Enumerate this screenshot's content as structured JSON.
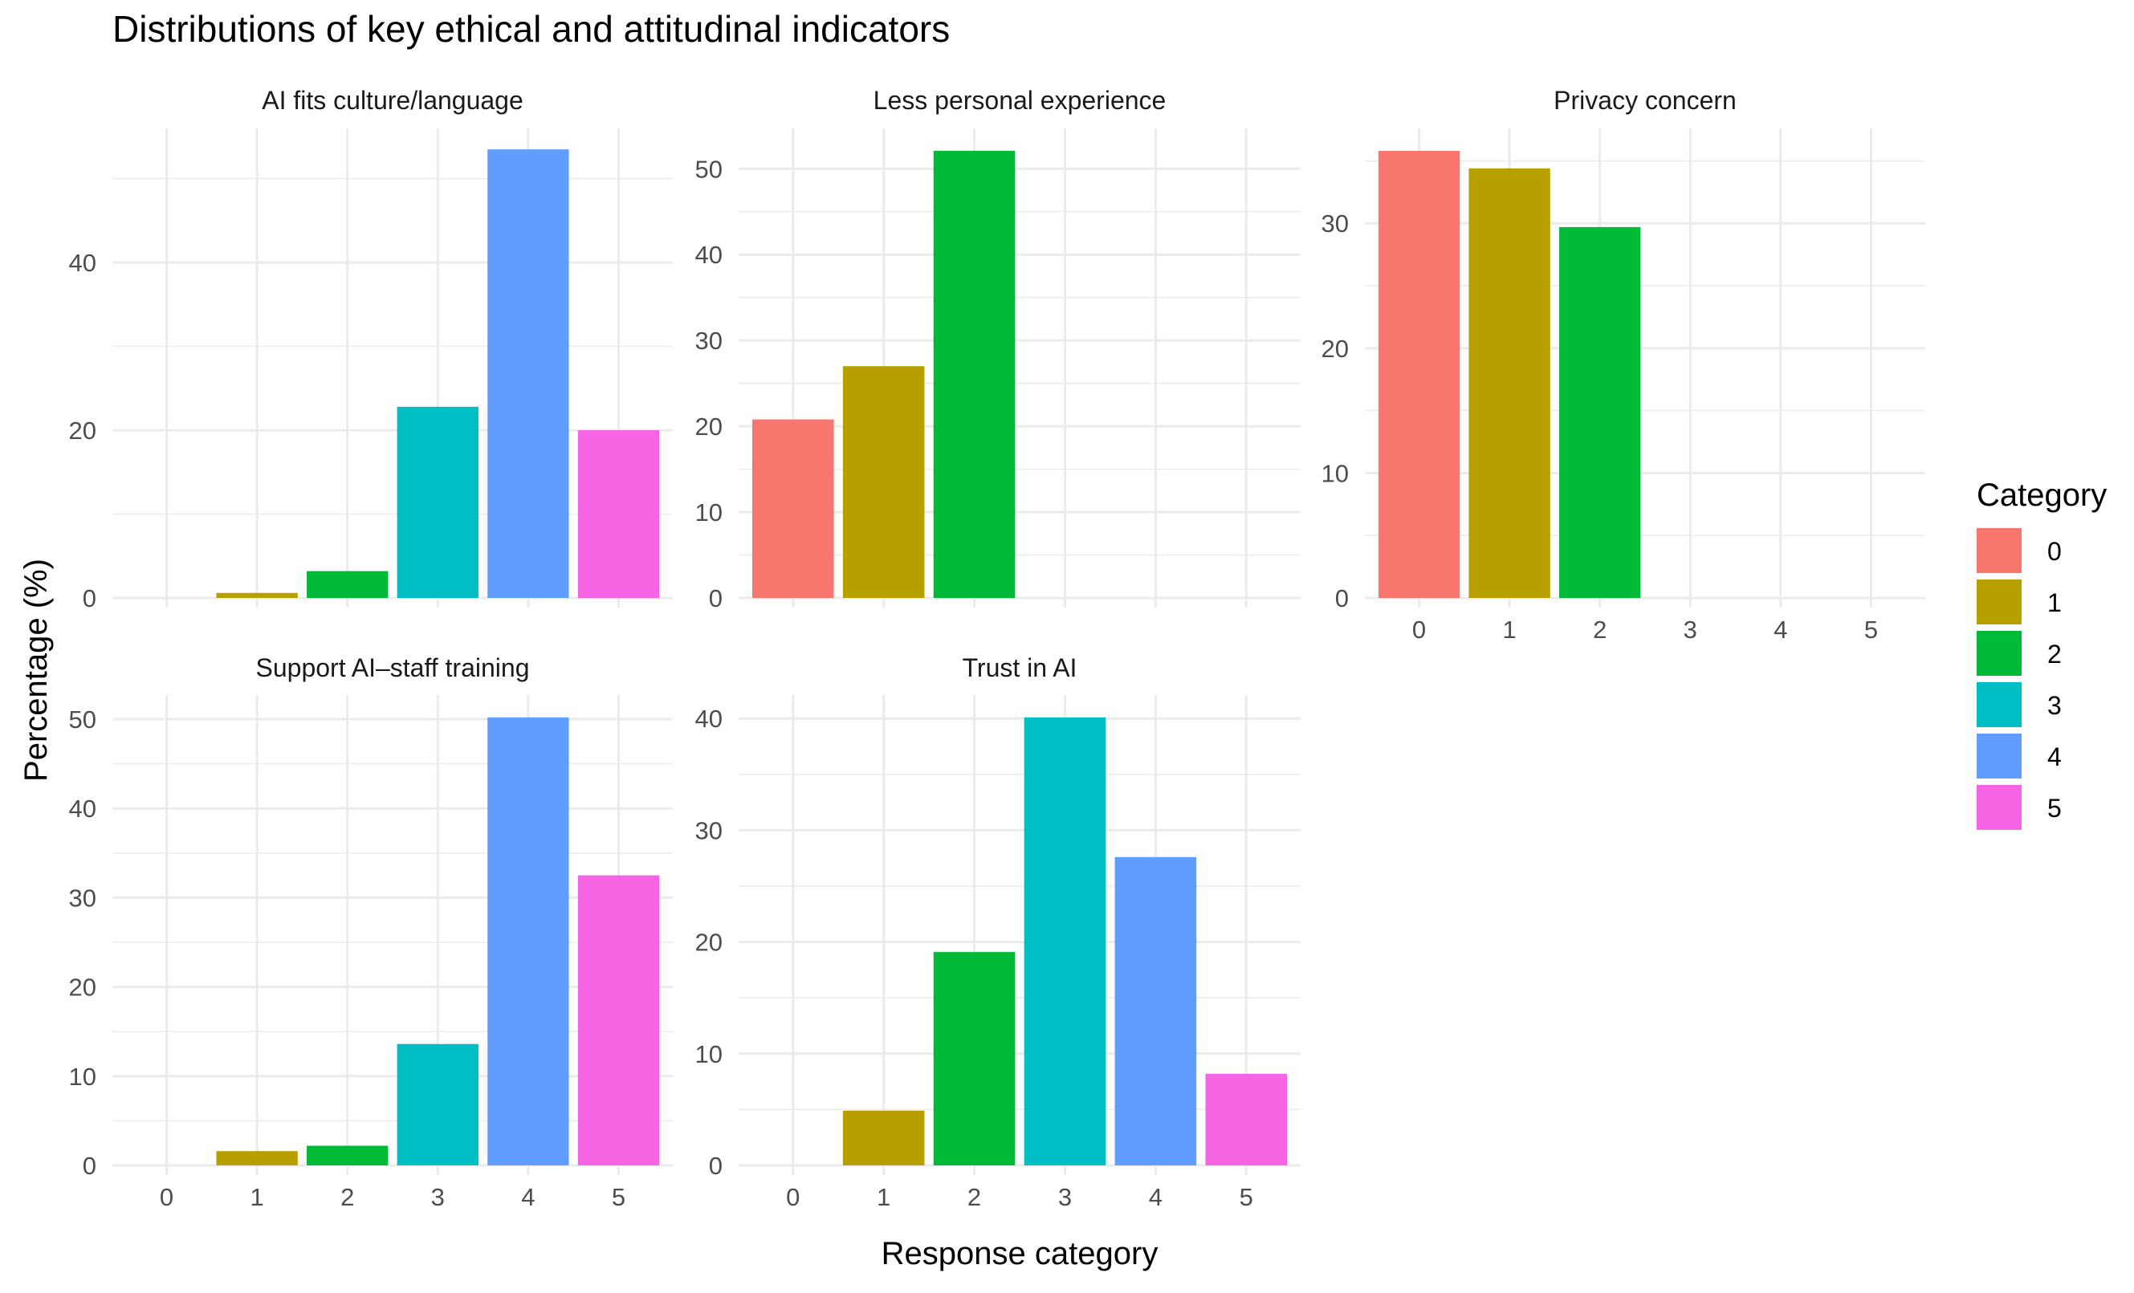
{
  "title": "Distributions of key ethical and attitudinal indicators",
  "xlabel": "Response category",
  "ylabel": "Percentage (%)",
  "legend": {
    "title": "Category",
    "position": "right",
    "items": [
      {
        "label": "0",
        "color": "#F8766D"
      },
      {
        "label": "1",
        "color": "#B79F00"
      },
      {
        "label": "2",
        "color": "#00BA38"
      },
      {
        "label": "3",
        "color": "#00BFC4"
      },
      {
        "label": "4",
        "color": "#619CFF"
      },
      {
        "label": "5",
        "color": "#F564E3"
      }
    ]
  },
  "chart_data": {
    "type": "bar",
    "facet_layout": "2x3 grid, shared x axis, free y axis",
    "categories": [
      "0",
      "1",
      "2",
      "3",
      "4",
      "5"
    ],
    "grid": true,
    "panels": [
      {
        "title": "AI fits culture/language",
        "values": [
          0,
          0.6,
          3.2,
          22.8,
          53.5,
          20.0
        ],
        "ylim": [
          0,
          56
        ],
        "yticks": [
          0,
          20,
          40
        ],
        "show_x_ticks": false
      },
      {
        "title": "Less personal experience",
        "values": [
          20.8,
          27.0,
          52.1,
          0,
          0,
          0
        ],
        "ylim": [
          0,
          54.7
        ],
        "yticks": [
          0,
          10,
          20,
          30,
          40,
          50
        ],
        "show_x_ticks": false
      },
      {
        "title": "Privacy concern",
        "values": [
          35.8,
          34.4,
          29.7,
          0,
          0,
          0
        ],
        "ylim": [
          0,
          37.6
        ],
        "yticks": [
          0,
          10,
          20,
          30
        ],
        "show_x_ticks": true
      },
      {
        "title": "Support AI–staff training",
        "values": [
          0,
          1.6,
          2.2,
          13.6,
          50.2,
          32.5
        ],
        "ylim": [
          0,
          52.7
        ],
        "yticks": [
          0,
          10,
          20,
          30,
          40,
          50
        ],
        "show_x_ticks": true
      },
      {
        "title": "Trust in AI",
        "values": [
          0,
          4.9,
          19.1,
          40.1,
          27.6,
          8.2
        ],
        "ylim": [
          0,
          42.1
        ],
        "yticks": [
          0,
          10,
          20,
          30,
          40
        ],
        "show_x_ticks": true
      }
    ]
  }
}
